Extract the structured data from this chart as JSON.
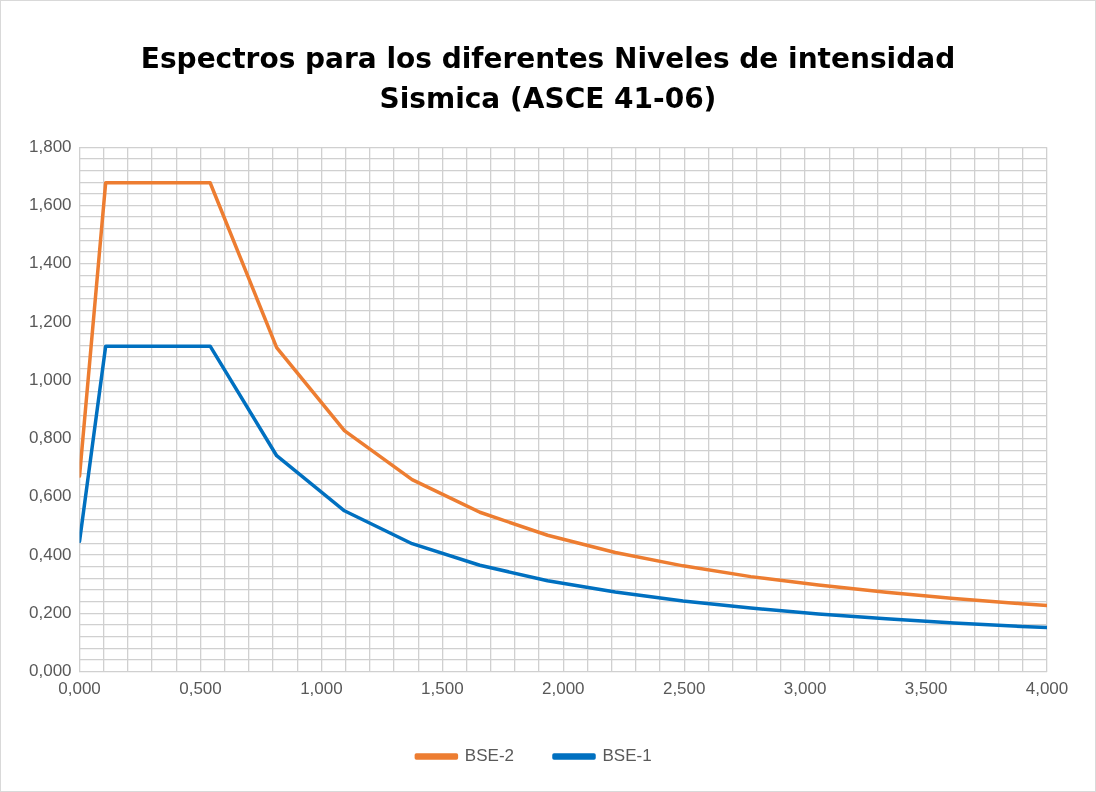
{
  "chart_data": {
    "type": "line",
    "title": "Espectros para los diferentes Niveles de intensidad Sismica (ASCE 41-06)",
    "series": [
      {
        "name": "BSE-2",
        "color": "#ed7d31",
        "x": [
          0,
          0.108,
          0.54,
          0.815,
          1.095,
          1.375,
          1.655,
          1.935,
          2.215,
          2.495,
          2.775,
          3.055,
          3.335,
          3.615,
          3.895,
          4.0
        ],
        "values": [
          0.671,
          1.678,
          1.678,
          1.112,
          0.827,
          0.659,
          0.547,
          0.468,
          0.409,
          0.363,
          0.326,
          0.297,
          0.272,
          0.251,
          0.233,
          0.227
        ]
      },
      {
        "name": "BSE-1",
        "color": "#0070c0",
        "x": [
          0,
          0.108,
          0.54,
          0.815,
          1.095,
          1.375,
          1.655,
          1.935,
          2.215,
          2.495,
          2.775,
          3.055,
          3.335,
          3.615,
          3.895,
          4.0
        ],
        "values": [
          0.447,
          1.117,
          1.117,
          0.741,
          0.552,
          0.439,
          0.365,
          0.312,
          0.273,
          0.242,
          0.218,
          0.198,
          0.181,
          0.167,
          0.155,
          0.151
        ]
      }
    ],
    "xlim": [
      0,
      4
    ],
    "xticks": [
      {
        "value": 0,
        "label": "0,000"
      },
      {
        "value": 0.1,
        "label": null
      },
      {
        "value": 0.2,
        "label": null
      },
      {
        "value": 0.3,
        "label": null
      },
      {
        "value": 0.4,
        "label": null
      },
      {
        "value": 0.5,
        "label": "0,500"
      },
      {
        "value": 0.6,
        "label": null
      },
      {
        "value": 0.7,
        "label": null
      },
      {
        "value": 0.8,
        "label": null
      },
      {
        "value": 0.9,
        "label": null
      },
      {
        "value": 1,
        "label": "1,000"
      },
      {
        "value": 1.1,
        "label": null
      },
      {
        "value": 1.2,
        "label": null
      },
      {
        "value": 1.3,
        "label": null
      },
      {
        "value": 1.4,
        "label": null
      },
      {
        "value": 1.5,
        "label": "1,500"
      },
      {
        "value": 1.6,
        "label": null
      },
      {
        "value": 1.7,
        "label": null
      },
      {
        "value": 1.8,
        "label": null
      },
      {
        "value": 1.9,
        "label": null
      },
      {
        "value": 2,
        "label": "2,000"
      },
      {
        "value": 2.1,
        "label": null
      },
      {
        "value": 2.2,
        "label": null
      },
      {
        "value": 2.3,
        "label": null
      },
      {
        "value": 2.4,
        "label": null
      },
      {
        "value": 2.5,
        "label": "2,500"
      },
      {
        "value": 2.6,
        "label": null
      },
      {
        "value": 2.7,
        "label": null
      },
      {
        "value": 2.8,
        "label": null
      },
      {
        "value": 2.9,
        "label": null
      },
      {
        "value": 3,
        "label": "3,000"
      },
      {
        "value": 3.1,
        "label": null
      },
      {
        "value": 3.2,
        "label": null
      },
      {
        "value": 3.3,
        "label": null
      },
      {
        "value": 3.4,
        "label": null
      },
      {
        "value": 3.5,
        "label": "3,500"
      },
      {
        "value": 3.6,
        "label": null
      },
      {
        "value": 3.7,
        "label": null
      },
      {
        "value": 3.8,
        "label": null
      },
      {
        "value": 3.9,
        "label": null
      },
      {
        "value": 4,
        "label": "4,000"
      }
    ],
    "ylim": [
      0,
      1.8
    ],
    "yticks": [
      {
        "value": 0,
        "label": "0,000"
      },
      {
        "value": 0.04,
        "label": null
      },
      {
        "value": 0.08,
        "label": null
      },
      {
        "value": 0.12,
        "label": null
      },
      {
        "value": 0.16,
        "label": null
      },
      {
        "value": 0.2,
        "label": "0,200"
      },
      {
        "value": 0.24,
        "label": null
      },
      {
        "value": 0.28,
        "label": null
      },
      {
        "value": 0.32,
        "label": null
      },
      {
        "value": 0.36,
        "label": null
      },
      {
        "value": 0.4,
        "label": "0,400"
      },
      {
        "value": 0.44,
        "label": null
      },
      {
        "value": 0.48,
        "label": null
      },
      {
        "value": 0.52,
        "label": null
      },
      {
        "value": 0.56,
        "label": null
      },
      {
        "value": 0.6,
        "label": "0,600"
      },
      {
        "value": 0.64,
        "label": null
      },
      {
        "value": 0.68,
        "label": null
      },
      {
        "value": 0.72,
        "label": null
      },
      {
        "value": 0.76,
        "label": null
      },
      {
        "value": 0.8,
        "label": "0,800"
      },
      {
        "value": 0.84,
        "label": null
      },
      {
        "value": 0.88,
        "label": null
      },
      {
        "value": 0.92,
        "label": null
      },
      {
        "value": 0.96,
        "label": null
      },
      {
        "value": 1,
        "label": "1,000"
      },
      {
        "value": 1.04,
        "label": null
      },
      {
        "value": 1.08,
        "label": null
      },
      {
        "value": 1.12,
        "label": null
      },
      {
        "value": 1.16,
        "label": null
      },
      {
        "value": 1.2,
        "label": "1,200"
      },
      {
        "value": 1.24,
        "label": null
      },
      {
        "value": 1.28,
        "label": null
      },
      {
        "value": 1.32,
        "label": null
      },
      {
        "value": 1.36,
        "label": null
      },
      {
        "value": 1.4,
        "label": "1,400"
      },
      {
        "value": 1.44,
        "label": null
      },
      {
        "value": 1.48,
        "label": null
      },
      {
        "value": 1.52,
        "label": null
      },
      {
        "value": 1.56,
        "label": null
      },
      {
        "value": 1.6,
        "label": "1,600"
      },
      {
        "value": 1.64,
        "label": null
      },
      {
        "value": 1.68,
        "label": null
      },
      {
        "value": 1.72,
        "label": null
      },
      {
        "value": 1.76,
        "label": null
      },
      {
        "value": 1.8,
        "label": "1,800"
      }
    ],
    "grid": true,
    "legend": "bottom",
    "marker": "none",
    "line_style": "solid"
  }
}
